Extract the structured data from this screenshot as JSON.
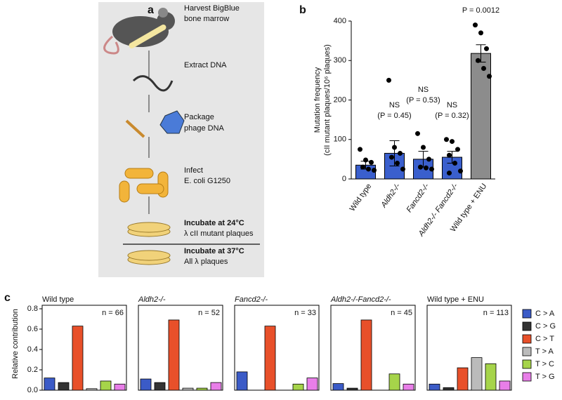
{
  "panel_labels": [
    "a",
    "b",
    "c"
  ],
  "diagram": {
    "steps": [
      [
        "Harvest BigBlue",
        "bone marrow"
      ],
      [
        "Extract DNA"
      ],
      [
        "Package",
        "phage DNA"
      ],
      [
        "Infect",
        "E. coli G1250"
      ],
      [
        "Incubate at 24°C",
        "λ cII mutant plaques"
      ],
      [
        "Incubate at 37°C",
        "All λ plaques"
      ]
    ]
  },
  "chart_data": [
    {
      "type": "bar",
      "ylabel": [
        "Mutation frequency",
        "(cII mutant plaques/10⁶ plaques)"
      ],
      "categories": [
        "Wild type",
        "Aldh2-/-",
        "Fancd2-/-",
        "Aldh2-/- Fancd2-/-",
        "Wild type + ENU"
      ],
      "values": [
        35,
        65,
        50,
        55,
        318
      ],
      "errors": [
        10,
        32,
        20,
        15,
        22
      ],
      "colors": [
        "#3a5fcd",
        "#3a5fcd",
        "#3a5fcd",
        "#3a5fcd",
        "#8c8c8c"
      ],
      "points": [
        [
          75,
          48,
          42,
          30,
          25,
          22
        ],
        [
          250,
          80,
          65,
          55,
          40,
          25
        ],
        [
          115,
          80,
          50,
          30,
          28,
          25
        ],
        [
          100,
          95,
          75,
          60,
          40,
          20,
          15
        ],
        [
          390,
          370,
          330,
          300,
          280,
          260
        ]
      ],
      "annotations": [
        [
          "NS",
          "(P = 0.45)"
        ],
        [
          "NS",
          "(P = 0.53)"
        ],
        [
          "NS",
          "(P = 0.32)"
        ]
      ],
      "top_annotation": "P = 0.0012",
      "ylim": [
        0,
        400
      ],
      "yticks": [
        0,
        100,
        200,
        300,
        400
      ]
    },
    {
      "type": "bar",
      "title": "Wild type",
      "annotation": "n = 66",
      "ylabel": "Relative contribution",
      "categories": [
        "C > A",
        "C > G",
        "C > T",
        "T > A",
        "T > C",
        "T > G"
      ],
      "colors": [
        "#3b5bc7",
        "#333333",
        "#e8502a",
        "#bbbbbb",
        "#a6d44a",
        "#e87ee8"
      ],
      "values": [
        0.12,
        0.075,
        0.63,
        0.015,
        0.09,
        0.06
      ],
      "ylim": [
        0,
        0.8
      ],
      "yticks": [
        {
          "value": 0,
          "label": "0.0"
        },
        0.2,
        0.4,
        0.6,
        0.8
      ]
    },
    {
      "type": "bar",
      "title": "Aldh2-/-",
      "annotation": "n = 52",
      "values": [
        0.11,
        0.075,
        0.69,
        0.02,
        0.02,
        0.075
      ],
      "ylim": [
        0,
        0.8
      ]
    },
    {
      "type": "bar",
      "title": "Fancd2-/-",
      "annotation": "n = 33",
      "values": [
        0.18,
        0,
        0.63,
        0,
        0.06,
        0.12
      ],
      "ylim": [
        0,
        0.8
      ]
    },
    {
      "type": "bar",
      "title": "Aldh2-/-Fancd2-/-",
      "annotation": "n = 45",
      "values": [
        0.065,
        0.02,
        0.69,
        0,
        0.16,
        0.06
      ],
      "ylim": [
        0,
        0.8
      ]
    },
    {
      "type": "bar",
      "title": "Wild type + ENU",
      "annotation": "n = 113",
      "values": [
        0.06,
        0.025,
        0.22,
        0.32,
        0.26,
        0.09
      ],
      "ylim": [
        0,
        0.8
      ]
    }
  ]
}
